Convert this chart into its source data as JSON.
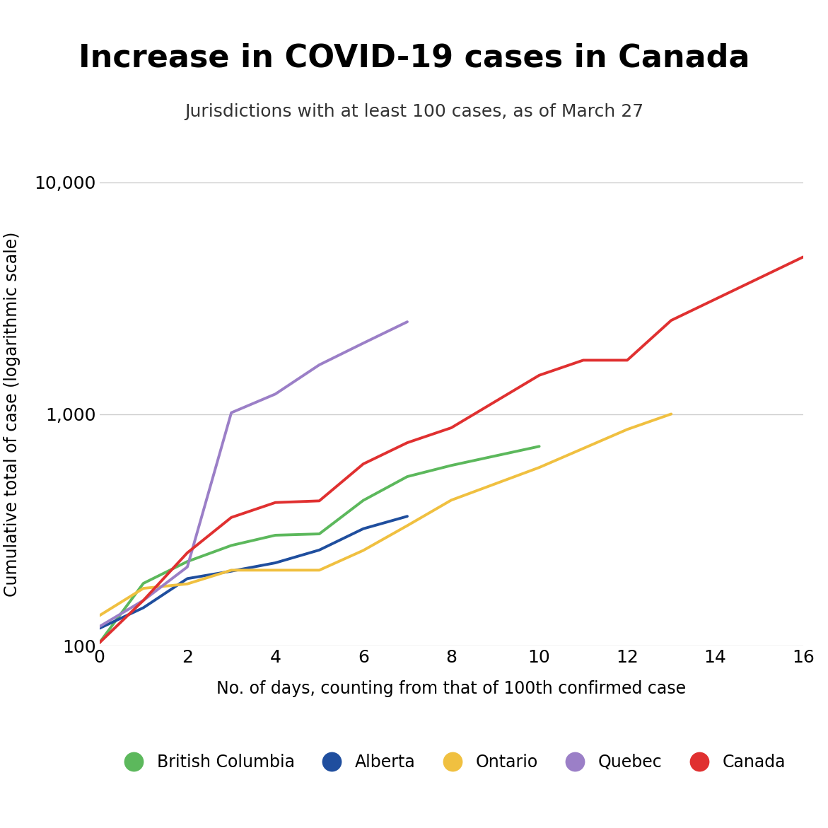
{
  "title": "Increase in COVID-19 cases in Canada",
  "subtitle": "Jurisdictions with at least 100 cases, as of March 27",
  "xlabel": "No. of days, counting from that of 100th confirmed case",
  "ylabel": "Cumulative total of case (logarithmic scale)",
  "xlim": [
    0,
    16
  ],
  "ylim": [
    100,
    10000
  ],
  "xticks": [
    0,
    2,
    4,
    6,
    8,
    10,
    12,
    14,
    16
  ],
  "yticks": [
    100,
    1000,
    10000
  ],
  "ytick_labels": [
    "100",
    "1,000",
    "10,000"
  ],
  "series": [
    {
      "name": "British Columbia",
      "color": "#5cb85c",
      "x": [
        0,
        1,
        2,
        3,
        4,
        5,
        6,
        7,
        8,
        10
      ],
      "y": [
        103,
        186,
        231,
        271,
        300,
        304,
        424,
        537,
        600,
        725
      ]
    },
    {
      "name": "Alberta",
      "color": "#1f4e9e",
      "x": [
        0,
        1,
        2,
        3,
        4,
        5,
        6,
        7
      ],
      "y": [
        119,
        146,
        195,
        210,
        228,
        259,
        320,
        362
      ]
    },
    {
      "name": "Ontario",
      "color": "#f0c040",
      "x": [
        0,
        1,
        2,
        3,
        4,
        5,
        6,
        7,
        8,
        10,
        12,
        13
      ],
      "y": [
        135,
        177,
        185,
        212,
        212,
        212,
        258,
        330,
        425,
        588,
        858,
        1000
      ]
    },
    {
      "name": "Quebec",
      "color": "#9b7fc7",
      "x": [
        0,
        1,
        2,
        3,
        4,
        5,
        6,
        7
      ],
      "y": [
        121,
        157,
        219,
        1013,
        1219,
        1629,
        2021,
        2498
      ]
    },
    {
      "name": "Canada",
      "color": "#e03030",
      "x": [
        0,
        1,
        2,
        3,
        4,
        5,
        6,
        7,
        8,
        10,
        11,
        12,
        13,
        16
      ],
      "y": [
        103,
        157,
        252,
        358,
        415,
        422,
        609,
        752,
        872,
        1469,
        1706,
        1706,
        2534,
        4757
      ]
    }
  ],
  "legend_entries": [
    "British Columbia",
    "Alberta",
    "Ontario",
    "Quebec",
    "Canada"
  ],
  "legend_colors": [
    "#5cb85c",
    "#1f4e9e",
    "#f0c040",
    "#9b7fc7",
    "#e03030"
  ],
  "background_color": "#ffffff",
  "grid_color": "#cccccc",
  "line_width": 2.8,
  "title_fontsize": 32,
  "subtitle_fontsize": 18,
  "tick_fontsize": 18,
  "label_fontsize": 17,
  "legend_fontsize": 17
}
